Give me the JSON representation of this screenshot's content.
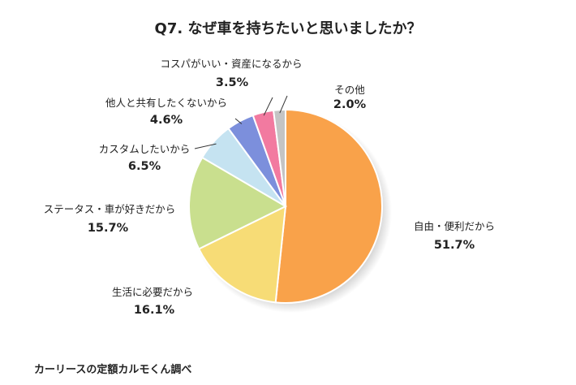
{
  "source": "カーリースの定額カルモくん調べ",
  "chart_data": {
    "type": "pie",
    "title": "Q7. なぜ車を持ちたいと思いましたか？",
    "slices": [
      {
        "label": "自由・便利だから",
        "value": 51.7,
        "value_label": "51.7%",
        "color": "#f9a24a"
      },
      {
        "label": "生活に必要だから",
        "value": 16.1,
        "value_label": "16.1%",
        "color": "#f7dc76"
      },
      {
        "label": "ステータス・車が好きだから",
        "value": 15.7,
        "value_label": "15.7%",
        "color": "#c9df8e"
      },
      {
        "label": "カスタムしたいから",
        "value": 6.5,
        "value_label": "6.5%",
        "color": "#c5e3f1"
      },
      {
        "label": "他人と共有したくないから",
        "value": 4.6,
        "value_label": "4.6%",
        "color": "#7c8fdc"
      },
      {
        "label": "コスパがいい・資産になるから",
        "value": 3.5,
        "value_label": "3.5%",
        "color": "#f27aa0"
      },
      {
        "label": "その他",
        "value": 2.0,
        "value_label": "2.0%",
        "color": "#c4c4c4"
      }
    ]
  }
}
